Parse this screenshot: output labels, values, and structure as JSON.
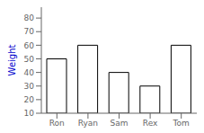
{
  "chart_data": {
    "type": "bar",
    "categories": [
      "Ron",
      "Ryan",
      "Sam",
      "Rex",
      "Tom"
    ],
    "values": [
      50,
      60,
      40,
      30,
      60
    ],
    "color": "#ffffff",
    "ylabel": "Weight",
    "ylim": [
      10,
      88
    ],
    "yticks": [
      10,
      20,
      30,
      40,
      50,
      60,
      70,
      80
    ]
  }
}
